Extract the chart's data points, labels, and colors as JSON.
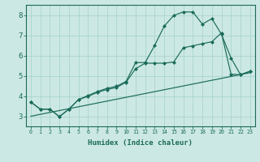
{
  "xlabel": "Humidex (Indice chaleur)",
  "bg_color": "#cce8e4",
  "line_color": "#1a6b5a",
  "grid_color": "#aad4ce",
  "xlim": [
    -0.5,
    23.5
  ],
  "ylim": [
    2.5,
    8.5
  ],
  "xticks": [
    0,
    1,
    2,
    3,
    4,
    5,
    6,
    7,
    8,
    9,
    10,
    11,
    12,
    13,
    14,
    15,
    16,
    17,
    18,
    19,
    20,
    21,
    22,
    23
  ],
  "yticks": [
    3,
    4,
    5,
    6,
    7,
    8
  ],
  "series": [
    {
      "x": [
        0,
        1,
        2,
        3,
        4,
        5,
        6,
        7,
        8,
        9,
        10,
        11,
        12,
        13,
        14,
        15,
        16,
        17,
        18,
        19,
        20,
        21,
        22,
        23
      ],
      "y": [
        3.7,
        3.35,
        3.35,
        2.98,
        3.35,
        3.82,
        4.02,
        4.22,
        4.38,
        4.48,
        4.72,
        5.65,
        5.65,
        6.5,
        7.45,
        7.98,
        8.15,
        8.15,
        7.55,
        7.82,
        7.05,
        5.88,
        5.05,
        5.22
      ],
      "has_markers": true
    },
    {
      "x": [
        0,
        1,
        2,
        3,
        4,
        5,
        6,
        7,
        8,
        9,
        10,
        11,
        12,
        13,
        14,
        15,
        16,
        17,
        18,
        19,
        20,
        21,
        22,
        23
      ],
      "y": [
        3.7,
        3.35,
        3.35,
        2.98,
        3.35,
        3.82,
        3.98,
        4.18,
        4.32,
        4.42,
        4.68,
        5.35,
        5.62,
        5.62,
        5.62,
        5.68,
        6.38,
        6.48,
        6.58,
        6.68,
        7.12,
        5.08,
        5.05,
        5.22
      ],
      "has_markers": true
    },
    {
      "x": [
        0,
        23
      ],
      "y": [
        3.0,
        5.15
      ],
      "has_markers": false
    }
  ]
}
